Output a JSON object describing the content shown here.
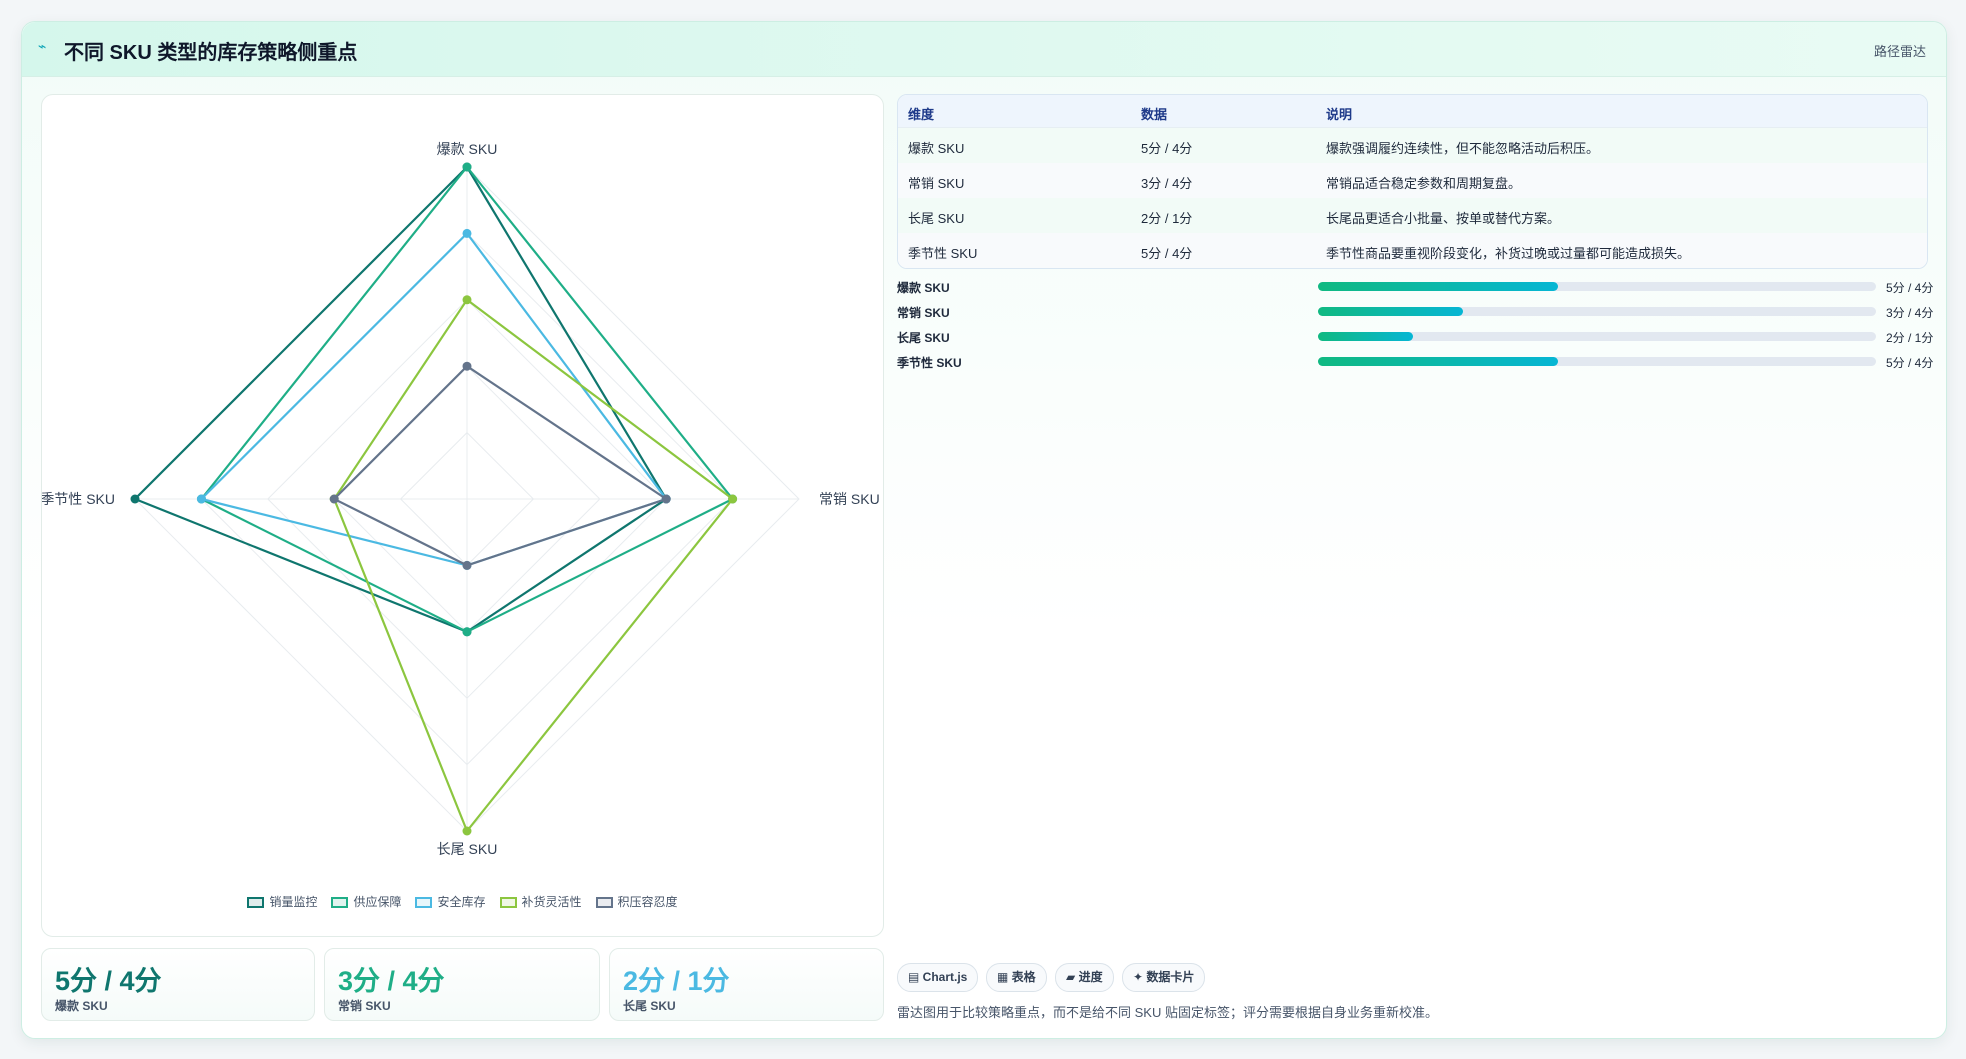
{
  "header": {
    "title": "不同 SKU 类型的库存策略侧重点",
    "badge": "路径雷达"
  },
  "chart_data": {
    "type": "radar",
    "categories": [
      "爆款 SKU",
      "常销 SKU",
      "长尾 SKU",
      "季节性 SKU"
    ],
    "series": [
      {
        "name": "销量监控",
        "color": "#0f766e",
        "values": [
          5,
          3,
          2,
          5
        ]
      },
      {
        "name": "供应保障",
        "color": "#1fae87",
        "values": [
          5,
          4,
          2,
          4
        ]
      },
      {
        "name": "安全库存",
        "color": "#4bb9e2",
        "values": [
          4,
          3,
          1,
          4
        ]
      },
      {
        "name": "补货灵活性",
        "color": "#8cc63f",
        "values": [
          3,
          4,
          5,
          2
        ]
      },
      {
        "name": "积压容忍度",
        "color": "#64748b",
        "values": [
          2,
          3,
          1,
          2
        ]
      }
    ],
    "rlim": [
      0,
      5
    ],
    "rticks": [
      1,
      2,
      3,
      4,
      5
    ],
    "grid": true,
    "legend": "bottom"
  },
  "table": {
    "columns": [
      "维度",
      "数据",
      "说明"
    ],
    "rows": [
      [
        "爆款 SKU",
        "5分 / 4分",
        "爆款强调履约连续性，但不能忽略活动后积压。"
      ],
      [
        "常销 SKU",
        "3分 / 4分",
        "常销品适合稳定参数和周期复盘。"
      ],
      [
        "长尾 SKU",
        "2分 / 1分",
        "长尾品更适合小批量、按单或替代方案。"
      ],
      [
        "季节性 SKU",
        "5分 / 4分",
        "季节性商品要重视阶段变化，补货过晚或过量都可能造成损失。"
      ]
    ]
  },
  "progress": {
    "items": [
      {
        "label": "爆款 SKU",
        "value": "5分 / 4分",
        "percent": 43
      },
      {
        "label": "常销 SKU",
        "value": "3分 / 4分",
        "percent": 26
      },
      {
        "label": "长尾 SKU",
        "value": "2分 / 1分",
        "percent": 17
      },
      {
        "label": "季节性 SKU",
        "value": "5分 / 4分",
        "percent": 43
      }
    ]
  },
  "kpis": [
    {
      "value": "5分 / 4分",
      "label": "爆款 SKU",
      "color": "#0f766e"
    },
    {
      "value": "3分 / 4分",
      "label": "常销 SKU",
      "color": "#1fae87"
    },
    {
      "value": "2分 / 1分",
      "label": "长尾 SKU",
      "color": "#4bb9e2"
    }
  ],
  "chips": [
    "▤ Chart.js",
    "▦ 表格",
    "▰ 进度",
    "✦ 数据卡片"
  ],
  "footnote": "雷达图用于比较策略重点，而不是给不同 SKU 贴固定标签；评分需要根据自身业务重新校准。"
}
